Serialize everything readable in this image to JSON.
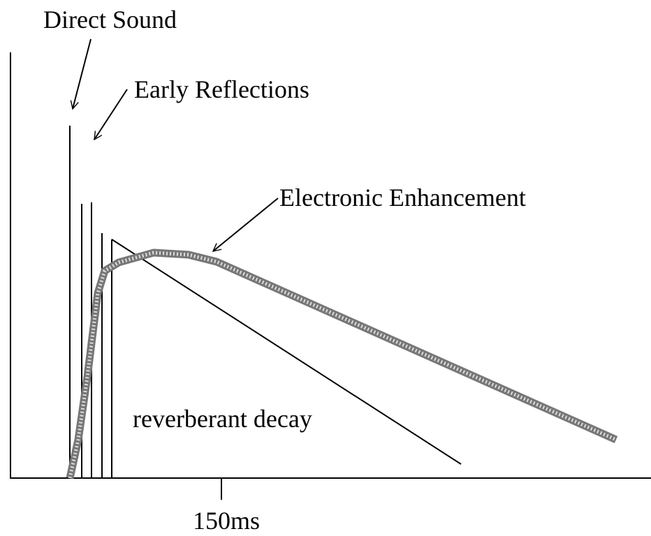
{
  "labels": {
    "direct_sound": "Direct Sound",
    "early_reflections": "Early Reflections",
    "electronic_enhancement": "Electronic Enhancement",
    "reverberant_decay": "reverberant decay",
    "x_tick": "150ms"
  }
}
